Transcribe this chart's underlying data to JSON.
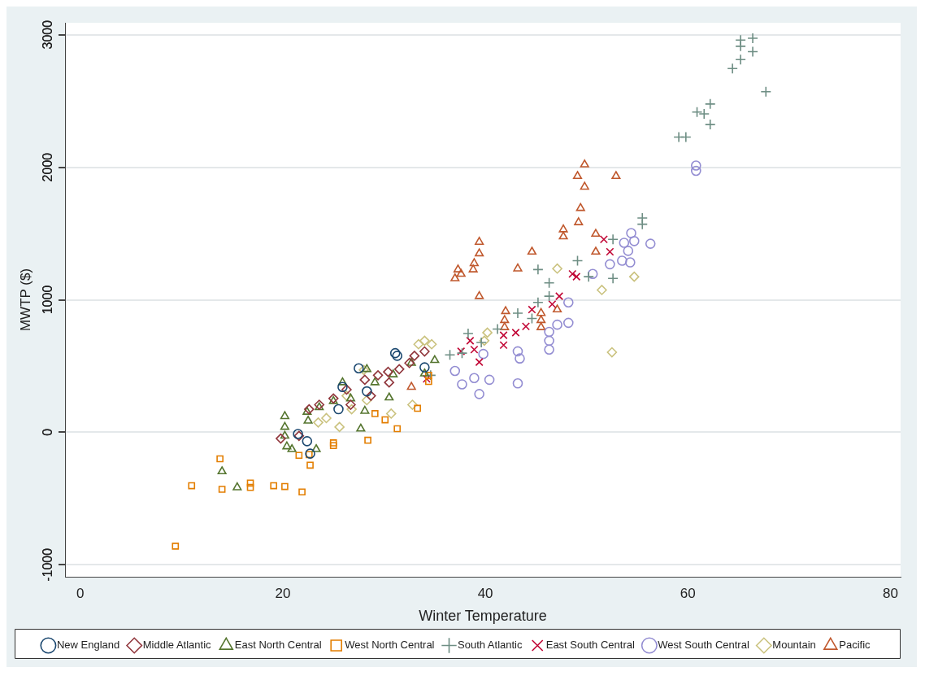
{
  "chart_data": {
    "type": "scatter",
    "xlabel": "Winter Temperature",
    "ylabel": "MWTP ($)",
    "xlim": [
      -1.5,
      81
    ],
    "ylim": [
      -1090,
      3090
    ],
    "xticks": [
      0,
      20,
      40,
      60,
      80
    ],
    "yticks": [
      -1000,
      0,
      1000,
      2000,
      3000
    ],
    "grid": "y",
    "legend": "bottom",
    "series": [
      {
        "name": "New England",
        "color": "#1a476f",
        "marker": "circle",
        "x": [
          31.1,
          31.3,
          22.4,
          22.7,
          21.5,
          34,
          25.9,
          27.5,
          25.5,
          28.3
        ],
        "values": [
          597,
          577,
          -67,
          -161,
          -13,
          490,
          342,
          483,
          174,
          309
        ]
      },
      {
        "name": "Middle Atlantic",
        "color": "#90353b",
        "marker": "diamond",
        "x": [
          19.8,
          21.6,
          23.6,
          22.6,
          25,
          26.3,
          28.1,
          29.4,
          30.4,
          31.5,
          32.5,
          34,
          33,
          30.5,
          28.7,
          26.7
        ],
        "values": [
          -47,
          -27,
          208,
          174,
          255,
          322,
          396,
          430,
          456,
          476,
          523,
          610,
          577,
          376,
          275,
          208
        ]
      },
      {
        "name": "East North Central",
        "color": "#55752f",
        "marker": "triangle",
        "x": [
          14,
          15.5,
          20.2,
          20.2,
          20.2,
          20.4,
          20.9,
          22.4,
          22.5,
          23.3,
          23.6,
          25,
          27.7,
          28.1,
          28.3,
          29.1,
          30.5,
          30.9,
          32.7,
          35,
          34,
          26.7,
          25.9
        ],
        "values": [
          -295,
          -416,
          121,
          40,
          -27,
          -107,
          -128,
          154,
          87,
          -128,
          188,
          235,
          27,
          161,
          476,
          376,
          262,
          436,
          523,
          544,
          443,
          255,
          376
        ]
      },
      {
        "name": "West North Central",
        "color": "#e37e00",
        "marker": "square",
        "x": [
          9.4,
          11,
          13.8,
          14,
          16.8,
          16.8,
          19.1,
          20.2,
          21.6,
          21.9,
          22.6,
          22.7,
          25,
          25,
          28.4,
          29.1,
          30.1,
          31.3,
          33.3,
          34.4,
          34.4
        ],
        "values": [
          -859,
          -403,
          -200,
          -430,
          -383,
          -416,
          -403,
          -409,
          -174,
          -450,
          -168,
          -248,
          -80,
          -100,
          -60,
          141,
          94,
          27,
          181,
          383,
          430
        ]
      },
      {
        "name": "South Atlantic",
        "color": "#6e8e84",
        "marker": "cross",
        "x": [
          65.2,
          66.4,
          65.2,
          66.4,
          65.2,
          64.4,
          67.7,
          62.2,
          60.9,
          61.6,
          62.2,
          59.1,
          59.8,
          55.5,
          55.5,
          52.6,
          49.1,
          45.2,
          50.2,
          52.6,
          46.3,
          46.3,
          45.2,
          43.2,
          44.6,
          38.3,
          36.5,
          37.7,
          39.6,
          41.2,
          34.6
        ],
        "values": [
          2960,
          2973,
          2913,
          2872,
          2812,
          2745,
          2570,
          2477,
          2416,
          2403,
          2322,
          2228,
          2228,
          1617,
          1570,
          1456,
          1295,
          1228,
          1174,
          1161,
          1127,
          1027,
          980,
          899,
          859,
          745,
          584,
          597,
          678,
          779,
          430
        ]
      },
      {
        "name": "East South Central",
        "color": "#c10534",
        "marker": "x",
        "x": [
          51.7,
          52.3,
          48.6,
          49,
          47.3,
          46.6,
          44.6,
          44,
          43,
          41.8,
          41.8,
          38.5,
          38.9,
          37.6,
          39.4,
          34.2
        ],
        "values": [
          1456,
          1362,
          1195,
          1174,
          1027,
          966,
          926,
          799,
          752,
          732,
          658,
          691,
          624,
          611,
          530,
          403
        ]
      },
      {
        "name": "West South Central",
        "color": "#938dd2",
        "marker": "circle",
        "x": [
          54.4,
          53.7,
          54.7,
          56.3,
          54.1,
          52.3,
          53.5,
          54.3,
          50.6,
          48.2,
          47.1,
          48.2,
          46.3,
          46.3,
          46.3,
          43.2,
          43.4,
          39.8,
          37,
          38.9,
          40.4,
          37.7,
          43.2,
          39.4,
          60.8,
          60.8
        ],
        "values": [
          1503,
          1430,
          1443,
          1423,
          1369,
          1268,
          1295,
          1282,
          1195,
          980,
          812,
          826,
          758,
          691,
          624,
          611,
          557,
          591,
          463,
          409,
          396,
          362,
          369,
          289,
          1973,
          2013
        ]
      },
      {
        "name": "Mountain",
        "color": "#cac27e",
        "marker": "diamond",
        "x": [
          23.5,
          24.3,
          25.6,
          26.8,
          28.3,
          26.3,
          30.7,
          32.8,
          33.4,
          34,
          34.7,
          40.2,
          39.9,
          47.1,
          51.5,
          52.5,
          54.7,
          28
        ],
        "values": [
          74,
          107,
          40,
          174,
          242,
          275,
          141,
          208,
          664,
          691,
          664,
          752,
          691,
          1235,
          1074,
          604,
          1174,
          470
        ]
      },
      {
        "name": "Pacific",
        "color": "#c0582d",
        "marker": "triangle",
        "x": [
          49.8,
          49.1,
          49.8,
          52.9,
          49.4,
          49.2,
          47.7,
          47.7,
          50.9,
          50.9,
          44.6,
          43.2,
          39.4,
          39.4,
          38.9,
          38.8,
          37.3,
          37.6,
          37,
          39.4,
          42,
          41.9,
          41.9,
          45.5,
          45.5,
          45.5,
          47.1,
          32.7
        ],
        "values": [
          2020,
          1933,
          1852,
          1933,
          1691,
          1584,
          1530,
          1477,
          1497,
          1362,
          1362,
          1235,
          1436,
          1349,
          1275,
          1228,
          1228,
          1195,
          1161,
          1027,
          913,
          846,
          792,
          899,
          846,
          792,
          926,
          342
        ]
      }
    ]
  }
}
